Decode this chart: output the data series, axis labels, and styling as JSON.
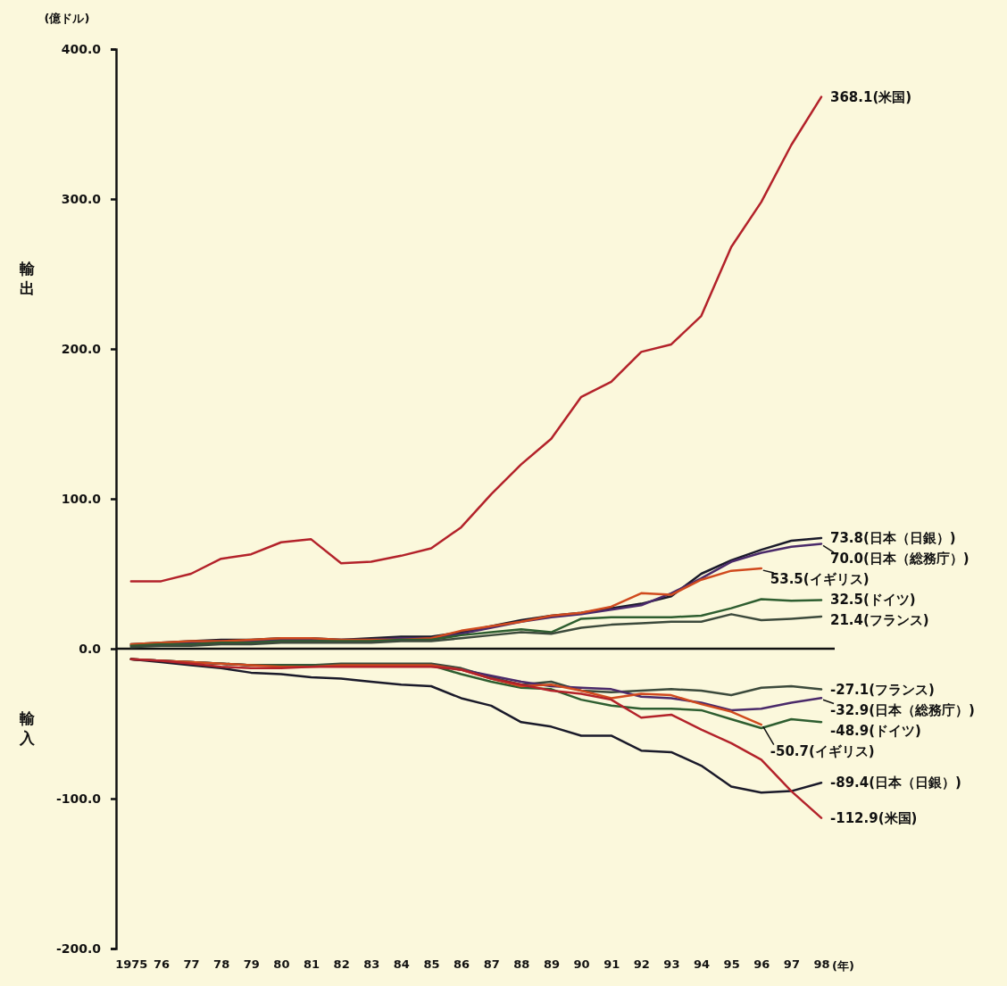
{
  "chart_data": {
    "type": "line",
    "ylabel": "(億ドル)",
    "annotations": [
      "輸出",
      "輸入"
    ],
    "x": [
      1975,
      1976,
      1977,
      1978,
      1979,
      1980,
      1981,
      1982,
      1983,
      1984,
      1985,
      1986,
      1987,
      1988,
      1989,
      1990,
      1991,
      1992,
      1993,
      1994,
      1995,
      1996,
      1997,
      1998
    ],
    "xlim": [
      1974.5,
      1998
    ],
    "xticks": [
      {
        "value": 1975,
        "label": "1975"
      },
      {
        "value": 1976,
        "label": "76"
      },
      {
        "value": 1977,
        "label": "77"
      },
      {
        "value": 1978,
        "label": "78"
      },
      {
        "value": 1979,
        "label": "79"
      },
      {
        "value": 1980,
        "label": "80"
      },
      {
        "value": 1981,
        "label": "81"
      },
      {
        "value": 1982,
        "label": "82"
      },
      {
        "value": 1983,
        "label": "83"
      },
      {
        "value": 1984,
        "label": "84"
      },
      {
        "value": 1985,
        "label": "85"
      },
      {
        "value": 1986,
        "label": "86"
      },
      {
        "value": 1987,
        "label": "87"
      },
      {
        "value": 1988,
        "label": "88"
      },
      {
        "value": 1989,
        "label": "89"
      },
      {
        "value": 1990,
        "label": "90"
      },
      {
        "value": 1991,
        "label": "91"
      },
      {
        "value": 1992,
        "label": "92"
      },
      {
        "value": 1993,
        "label": "93"
      },
      {
        "value": 1994,
        "label": "94"
      },
      {
        "value": 1995,
        "label": "95"
      },
      {
        "value": 1996,
        "label": "96"
      },
      {
        "value": 1997,
        "label": "97"
      },
      {
        "value": 1998,
        "label": "98"
      }
    ],
    "xlabel": "(年)",
    "ref_lines": [
      {
        "axis": "y",
        "value": 0
      }
    ],
    "ylim": [
      -200,
      400
    ],
    "yticks": [
      {
        "value": -200,
        "label": "-200.0"
      },
      {
        "value": -100,
        "label": "-100.0"
      },
      {
        "value": 0,
        "label": "0.0"
      },
      {
        "value": 100,
        "label": "100.0"
      },
      {
        "value": 200,
        "label": "200.0"
      },
      {
        "value": 300,
        "label": "300.0"
      },
      {
        "value": 400,
        "label": "400.0"
      }
    ],
    "marker": "none",
    "line_style": "solid",
    "series": [
      {
        "color": "#b3222a",
        "values": [
          45,
          45,
          50,
          60,
          63,
          71,
          73,
          57,
          58,
          62,
          67,
          81,
          103,
          123,
          140,
          168,
          178,
          198,
          203,
          222,
          268,
          298,
          336,
          368.1
        ],
        "value_labels": [
          null,
          null,
          null,
          null,
          null,
          null,
          null,
          null,
          null,
          null,
          null,
          null,
          null,
          null,
          null,
          null,
          null,
          null,
          null,
          null,
          null,
          null,
          null,
          "368.1(米国)"
        ]
      },
      {
        "color": "#1a1a2a",
        "values": [
          3,
          4,
          5,
          6,
          6,
          7,
          7,
          6,
          7,
          8,
          8,
          11,
          15,
          19,
          22,
          24,
          27,
          30,
          35,
          50,
          59,
          66,
          72,
          73.8
        ],
        "value_labels": [
          null,
          null,
          null,
          null,
          null,
          null,
          null,
          null,
          null,
          null,
          null,
          null,
          null,
          null,
          null,
          null,
          null,
          null,
          null,
          null,
          null,
          null,
          null,
          "73.8(日本（日銀）)"
        ]
      },
      {
        "color": "#4a2a6a",
        "values": [
          2,
          3,
          4,
          5,
          5,
          6,
          6,
          6,
          6,
          7,
          7,
          10,
          14,
          18,
          21,
          23,
          26,
          29,
          37,
          47,
          58,
          64,
          68,
          70.0
        ],
        "value_labels": [
          null,
          null,
          null,
          null,
          null,
          null,
          null,
          null,
          null,
          null,
          null,
          null,
          null,
          null,
          null,
          null,
          null,
          null,
          null,
          null,
          null,
          null,
          null,
          "70.0(日本（総務庁）)"
        ]
      },
      {
        "color": "#d04a1e",
        "values": [
          3,
          4,
          5,
          5,
          6,
          7,
          7,
          6,
          6,
          6,
          7,
          12,
          15,
          18,
          22,
          24,
          28,
          37,
          36,
          46,
          52,
          53.5,
          null,
          null
        ],
        "value_labels": [
          null,
          null,
          null,
          null,
          null,
          null,
          null,
          null,
          null,
          null,
          null,
          null,
          null,
          null,
          null,
          null,
          null,
          null,
          null,
          null,
          null,
          "53.5(イギリス)",
          null,
          null
        ]
      },
      {
        "color": "#2e5e30",
        "values": [
          2,
          3,
          3,
          4,
          4,
          5,
          5,
          5,
          5,
          6,
          6,
          9,
          11,
          13,
          11,
          20,
          21,
          21,
          21,
          22,
          27,
          33,
          32,
          32.5
        ],
        "value_labels": [
          null,
          null,
          null,
          null,
          null,
          null,
          null,
          null,
          null,
          null,
          null,
          null,
          null,
          null,
          null,
          null,
          null,
          null,
          null,
          null,
          null,
          null,
          null,
          "32.5(ドイツ)"
        ]
      },
      {
        "color": "#3c4a3c",
        "values": [
          1,
          2,
          2,
          3,
          3,
          4,
          4,
          4,
          4,
          5,
          5,
          7,
          9,
          11,
          10,
          14,
          16,
          17,
          18,
          18,
          23,
          19,
          20,
          21.4
        ],
        "value_labels": [
          null,
          null,
          null,
          null,
          null,
          null,
          null,
          null,
          null,
          null,
          null,
          null,
          null,
          null,
          null,
          null,
          null,
          null,
          null,
          null,
          null,
          null,
          null,
          "21.4(フランス)"
        ]
      },
      {
        "color": "#3c4a3c",
        "values": [
          -7,
          -8,
          -9,
          -10,
          -11,
          -11,
          -11,
          -10,
          -10,
          -10,
          -10,
          -13,
          -19,
          -24,
          -22,
          -28,
          -29,
          -28,
          -27,
          -28,
          -31,
          -26,
          -25,
          -27.1
        ],
        "value_labels": [
          null,
          null,
          null,
          null,
          null,
          null,
          null,
          null,
          null,
          null,
          null,
          null,
          null,
          null,
          null,
          null,
          null,
          null,
          null,
          null,
          null,
          null,
          null,
          "-27.1(フランス)"
        ]
      },
      {
        "color": "#4a2a6a",
        "values": [
          -7,
          -8,
          -9,
          -10,
          -11,
          -11,
          -11,
          -11,
          -11,
          -11,
          -11,
          -14,
          -18,
          -22,
          -25,
          -26,
          -27,
          -32,
          -33,
          -36,
          -41,
          -40,
          -36,
          -32.9
        ],
        "value_labels": [
          null,
          null,
          null,
          null,
          null,
          null,
          null,
          null,
          null,
          null,
          null,
          null,
          null,
          null,
          null,
          null,
          null,
          null,
          null,
          null,
          null,
          null,
          null,
          "-32.9(日本（総務庁）)"
        ]
      },
      {
        "color": "#2e5e30",
        "values": [
          -7,
          -8,
          -9,
          -10,
          -11,
          -11,
          -11,
          -11,
          -11,
          -11,
          -11,
          -17,
          -22,
          -26,
          -27,
          -34,
          -38,
          -40,
          -40,
          -41,
          -47,
          -53,
          -47,
          -48.9
        ],
        "value_labels": [
          null,
          null,
          null,
          null,
          null,
          null,
          null,
          null,
          null,
          null,
          null,
          null,
          null,
          null,
          null,
          null,
          null,
          null,
          null,
          null,
          null,
          null,
          null,
          "-48.9(ドイツ)"
        ]
      },
      {
        "color": "#d04a1e",
        "values": [
          -7,
          -8,
          -9,
          -10,
          -11,
          -12,
          -12,
          -11,
          -11,
          -11,
          -11,
          -14,
          -20,
          -25,
          -24,
          -28,
          -33,
          -30,
          -31,
          -37,
          -42,
          -50.7,
          null,
          null
        ],
        "value_labels": [
          null,
          null,
          null,
          null,
          null,
          null,
          null,
          null,
          null,
          null,
          null,
          null,
          null,
          null,
          null,
          null,
          null,
          null,
          null,
          null,
          null,
          "-50.7(イギリス)",
          null,
          null
        ]
      },
      {
        "color": "#1a1a2a",
        "values": [
          -7,
          -9,
          -11,
          -13,
          -16,
          -17,
          -19,
          -20,
          -22,
          -24,
          -25,
          -33,
          -38,
          -49,
          -52,
          -58,
          -58,
          -68,
          -69,
          -78,
          -92,
          -96,
          -95,
          -89.4
        ],
        "value_labels": [
          null,
          null,
          null,
          null,
          null,
          null,
          null,
          null,
          null,
          null,
          null,
          null,
          null,
          null,
          null,
          null,
          null,
          null,
          null,
          null,
          null,
          null,
          null,
          "-89.4(日本（日銀）)"
        ]
      },
      {
        "color": "#b3222a",
        "values": [
          -7,
          -8,
          -10,
          -12,
          -13,
          -13,
          -12,
          -12,
          -12,
          -12,
          -12,
          -14,
          -20,
          -24,
          -28,
          -30,
          -34,
          -46,
          -44,
          -54,
          -63,
          -74,
          -95,
          -112.9
        ],
        "value_labels": [
          null,
          null,
          null,
          null,
          null,
          null,
          null,
          null,
          null,
          null,
          null,
          null,
          null,
          null,
          null,
          null,
          null,
          null,
          null,
          null,
          null,
          null,
          null,
          "-112.9(米国)"
        ]
      }
    ]
  }
}
